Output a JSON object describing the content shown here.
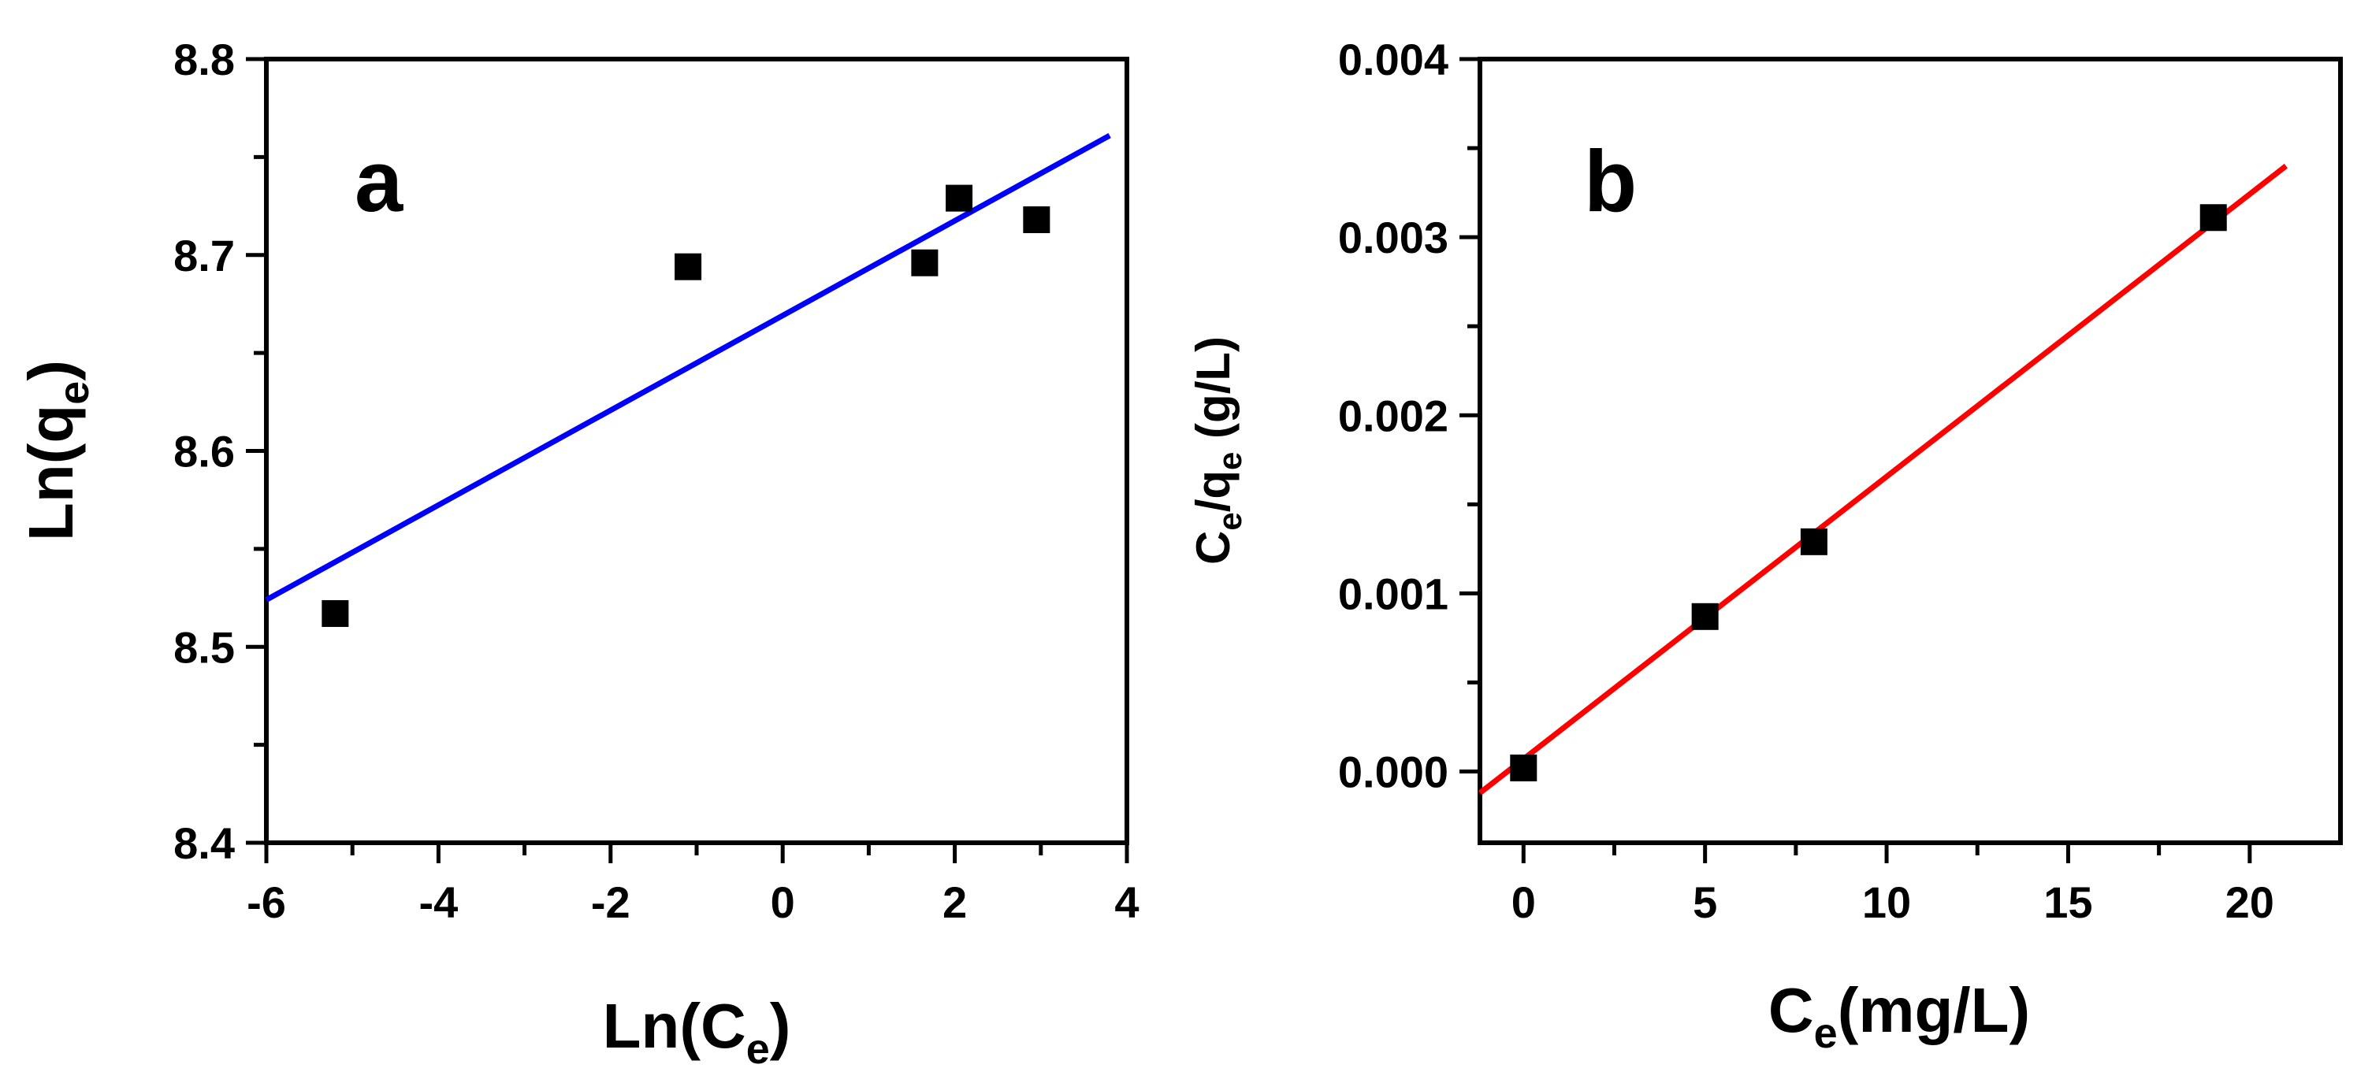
{
  "chart_data": [
    {
      "type": "scatter",
      "panel_label": "a",
      "xlabel": {
        "main": "Ln(C",
        "sub": "e",
        "close": ")"
      },
      "ylabel": {
        "main": "Ln(q",
        "sub": "e",
        "close": ")"
      },
      "xlim": [
        -6,
        4
      ],
      "ylim": [
        8.4,
        8.8
      ],
      "xticks": [
        -6,
        -4,
        -2,
        0,
        2,
        4
      ],
      "yticks": [
        8.4,
        8.5,
        8.6,
        8.7,
        8.8
      ],
      "xtick_labels": [
        "-6",
        "-4",
        "-2",
        "0",
        "2",
        "4"
      ],
      "ytick_labels": [
        "8.4",
        "8.5",
        "8.6",
        "8.7",
        "8.8"
      ],
      "grid": false,
      "points": {
        "x": [
          -5.2,
          -1.1,
          1.65,
          2.05,
          2.95
        ],
        "y": [
          8.517,
          8.694,
          8.696,
          8.729,
          8.718
        ]
      },
      "fit_line": {
        "x": [
          -6,
          3.8
        ],
        "y": [
          8.524,
          8.761
        ],
        "color": "#0000ff"
      },
      "marker_color": "#000000"
    },
    {
      "type": "scatter",
      "panel_label": "b",
      "xlabel": {
        "main": "C",
        "sub": "e",
        "close": "(mg/L)"
      },
      "ylabel": {
        "pre": "C",
        "sub1": "e",
        "mid": "/q",
        "sub2": "e",
        "post": " (g/L)"
      },
      "xlim": [
        -1.2,
        22.5
      ],
      "ylim": [
        -0.0004,
        0.004
      ],
      "xticks": [
        0,
        5,
        10,
        15,
        20
      ],
      "yticks": [
        0.0,
        0.001,
        0.002,
        0.003,
        0.004
      ],
      "xtick_labels": [
        "0",
        "5",
        "10",
        "15",
        "20"
      ],
      "ytick_labels": [
        "0.000",
        "0.001",
        "0.002",
        "0.003",
        "0.004"
      ],
      "grid": false,
      "points": {
        "x": [
          0,
          5,
          8,
          19
        ],
        "y": [
          2e-05,
          0.00087,
          0.00129,
          0.00311
        ]
      },
      "fit_line": {
        "x": [
          -1.2,
          21
        ],
        "y": [
          -0.00012,
          0.0034
        ],
        "color": "#ff0000"
      },
      "marker_color": "#000000"
    }
  ]
}
